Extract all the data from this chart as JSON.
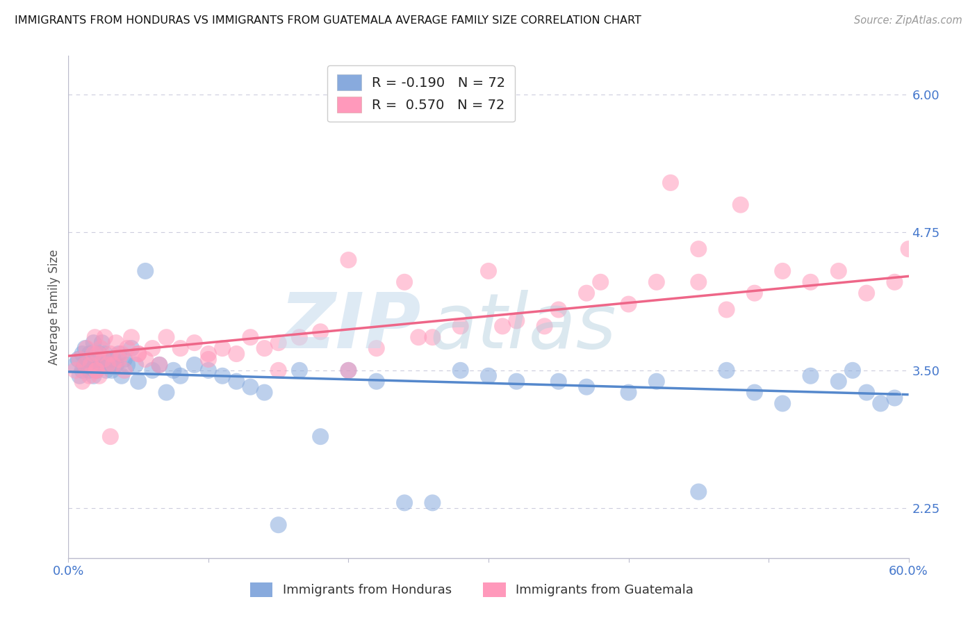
{
  "title": "IMMIGRANTS FROM HONDURAS VS IMMIGRANTS FROM GUATEMALA AVERAGE FAMILY SIZE CORRELATION CHART",
  "source": "Source: ZipAtlas.com",
  "ylabel": "Average Family Size",
  "yticks": [
    2.25,
    3.5,
    4.75,
    6.0
  ],
  "xlim": [
    0.0,
    0.6
  ],
  "ylim": [
    1.8,
    6.35
  ],
  "legend_label_1": "R = -0.190   N = 72",
  "legend_label_2": "R =  0.570   N = 72",
  "legend_label_bottom_1": "Immigrants from Honduras",
  "legend_label_bottom_2": "Immigrants from Guatemala",
  "color_honduras": "#88AADD",
  "color_guatemala": "#FF99BB",
  "color_axis_blue": "#4477CC",
  "R_honduras": -0.19,
  "R_guatemala": 0.57,
  "N": 72,
  "background_color": "#FFFFFF",
  "grid_color": "#CCCCDD",
  "honduras_x": [
    0.005,
    0.007,
    0.008,
    0.01,
    0.01,
    0.012,
    0.012,
    0.013,
    0.015,
    0.015,
    0.016,
    0.017,
    0.018,
    0.018,
    0.019,
    0.02,
    0.02,
    0.021,
    0.022,
    0.023,
    0.024,
    0.025,
    0.026,
    0.027,
    0.028,
    0.03,
    0.031,
    0.032,
    0.034,
    0.036,
    0.038,
    0.04,
    0.042,
    0.045,
    0.048,
    0.05,
    0.055,
    0.06,
    0.065,
    0.07,
    0.075,
    0.08,
    0.09,
    0.1,
    0.11,
    0.12,
    0.13,
    0.14,
    0.15,
    0.165,
    0.18,
    0.2,
    0.22,
    0.24,
    0.26,
    0.28,
    0.3,
    0.32,
    0.35,
    0.37,
    0.4,
    0.42,
    0.45,
    0.47,
    0.49,
    0.51,
    0.53,
    0.55,
    0.56,
    0.57,
    0.58,
    0.59
  ],
  "honduras_y": [
    3.55,
    3.6,
    3.45,
    3.5,
    3.65,
    3.55,
    3.7,
    3.6,
    3.5,
    3.65,
    3.55,
    3.6,
    3.45,
    3.75,
    3.55,
    3.6,
    3.5,
    3.55,
    3.65,
    3.55,
    3.75,
    3.6,
    3.65,
    3.5,
    3.6,
    3.55,
    3.5,
    3.6,
    3.55,
    3.65,
    3.45,
    3.6,
    3.55,
    3.7,
    3.55,
    3.4,
    4.4,
    3.5,
    3.55,
    3.3,
    3.5,
    3.45,
    3.55,
    3.5,
    3.45,
    3.4,
    3.35,
    3.3,
    2.1,
    3.5,
    2.9,
    3.5,
    3.4,
    2.3,
    2.3,
    3.5,
    3.45,
    3.4,
    3.4,
    3.35,
    3.3,
    3.4,
    2.4,
    3.5,
    3.3,
    3.2,
    3.45,
    3.4,
    3.5,
    3.3,
    3.2,
    3.25
  ],
  "guatemala_x": [
    0.005,
    0.008,
    0.01,
    0.012,
    0.013,
    0.015,
    0.016,
    0.018,
    0.019,
    0.02,
    0.021,
    0.022,
    0.023,
    0.025,
    0.026,
    0.028,
    0.03,
    0.032,
    0.034,
    0.036,
    0.038,
    0.04,
    0.042,
    0.045,
    0.05,
    0.055,
    0.06,
    0.065,
    0.07,
    0.08,
    0.09,
    0.1,
    0.11,
    0.12,
    0.13,
    0.14,
    0.15,
    0.165,
    0.18,
    0.2,
    0.22,
    0.24,
    0.26,
    0.28,
    0.3,
    0.32,
    0.35,
    0.37,
    0.4,
    0.42,
    0.45,
    0.47,
    0.49,
    0.51,
    0.53,
    0.55,
    0.57,
    0.59,
    0.6,
    0.43,
    0.48,
    0.38,
    0.34,
    0.45,
    0.31,
    0.25,
    0.2,
    0.15,
    0.1,
    0.05,
    0.03,
    0.02
  ],
  "guatemala_y": [
    3.5,
    3.6,
    3.4,
    3.55,
    3.7,
    3.45,
    3.55,
    3.65,
    3.8,
    3.5,
    3.65,
    3.45,
    3.7,
    3.6,
    3.8,
    3.55,
    3.65,
    3.55,
    3.75,
    3.6,
    3.65,
    3.5,
    3.7,
    3.8,
    3.65,
    3.6,
    3.7,
    3.55,
    3.8,
    3.7,
    3.75,
    3.65,
    3.7,
    3.65,
    3.8,
    3.7,
    3.75,
    3.8,
    3.85,
    3.5,
    3.7,
    4.3,
    3.8,
    3.9,
    4.4,
    3.95,
    4.05,
    4.2,
    4.1,
    4.3,
    4.3,
    4.05,
    4.2,
    4.4,
    4.3,
    4.4,
    4.2,
    4.3,
    4.6,
    5.2,
    5.0,
    4.3,
    3.9,
    4.6,
    3.9,
    3.8,
    4.5,
    3.5,
    3.6,
    3.65,
    2.9,
    3.5
  ]
}
